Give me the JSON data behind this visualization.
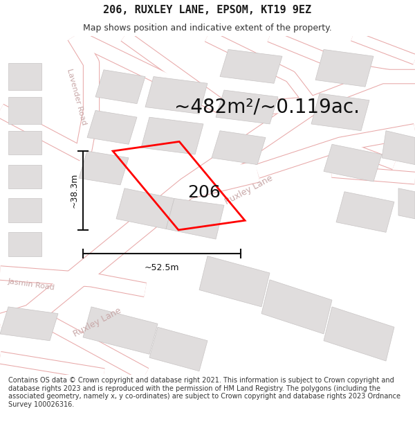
{
  "title": "206, RUXLEY LANE, EPSOM, KT19 9EZ",
  "subtitle": "Map shows position and indicative extent of the property.",
  "footer": "Contains OS data © Crown copyright and database right 2021. This information is subject to Crown copyright and database rights 2023 and is reproduced with the permission of HM Land Registry. The polygons (including the associated geometry, namely x, y co-ordinates) are subject to Crown copyright and database rights 2023 Ordnance Survey 100026316.",
  "area_label": "~482m²/~0.119ac.",
  "number_label": "206",
  "width_label": "~52.5m",
  "height_label": "~38.3m",
  "bg_color": "#f5f3f3",
  "road_fill": "#ffffff",
  "road_stroke": "#e8a8a8",
  "road_stroke_lw": 0.8,
  "building_fill": "#e0dddd",
  "building_stroke": "#c8c4c4",
  "building_lw": 0.5,
  "property_stroke": "#ff0000",
  "property_lw": 2.0,
  "title_fontsize": 11,
  "subtitle_fontsize": 9,
  "footer_fontsize": 7,
  "area_fontsize": 20,
  "number_fontsize": 18,
  "dim_fontsize": 9,
  "road_label_fontsize": 9,
  "road_label_color": "#c8a8a8"
}
